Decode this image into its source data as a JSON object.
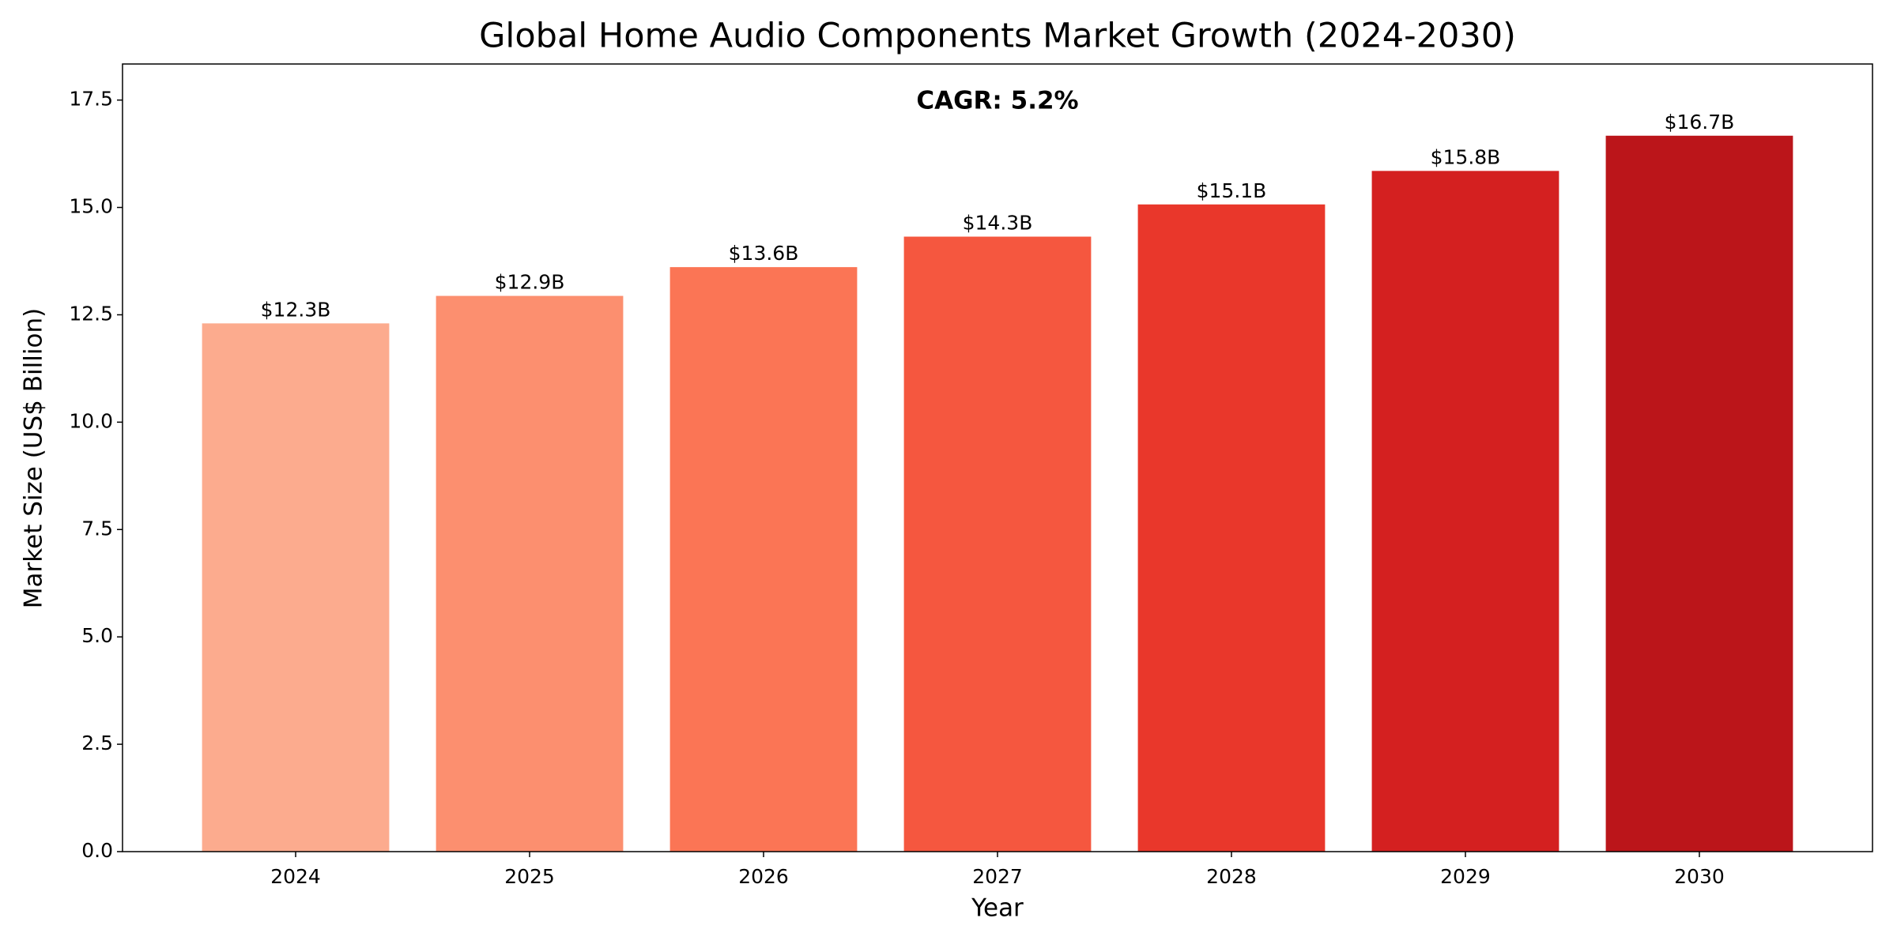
{
  "chart_data": {
    "type": "bar",
    "title": "Global Home Audio Components Market Growth (2024-2030)",
    "x_label": "Year",
    "y_label": "Market Size (US$ Billion)",
    "annotation": "CAGR: 5.2%",
    "categories": [
      "2024",
      "2025",
      "2026",
      "2027",
      "2028",
      "2029",
      "2030"
    ],
    "values": [
      12.3,
      12.94,
      13.61,
      14.32,
      15.07,
      15.85,
      16.67
    ],
    "value_labels": [
      "$12.3B",
      "$12.9B",
      "$13.6B",
      "$14.3B",
      "$15.1B",
      "$15.8B",
      "$16.7B"
    ],
    "colors": [
      "#fcab8e",
      "#fc8f6f",
      "#fb7555",
      "#f5573f",
      "#e9372b",
      "#d42020",
      "#bb151a"
    ],
    "ylim": [
      0,
      18.34
    ],
    "yticks": [
      {
        "value": 0,
        "label": "0.0"
      },
      2.5,
      {
        "value": 5,
        "label": "5.0"
      },
      7.5,
      {
        "value": 10,
        "label": "10.0"
      },
      12.5,
      {
        "value": 15,
        "label": "15.0"
      },
      17.5
    ],
    "grid": false
  }
}
